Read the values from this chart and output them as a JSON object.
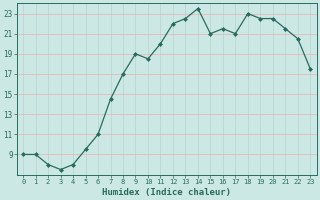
{
  "x": [
    0,
    1,
    2,
    3,
    4,
    5,
    6,
    7,
    8,
    9,
    10,
    11,
    12,
    13,
    14,
    15,
    16,
    17,
    18,
    19,
    20,
    21,
    22,
    23
  ],
  "y": [
    9,
    9,
    8,
    7.5,
    8,
    9.5,
    11,
    14.5,
    17,
    19,
    18.5,
    20,
    22,
    22.5,
    23.5,
    21,
    21.5,
    21,
    23,
    22.5,
    22.5,
    21.5,
    20.5,
    17.5
  ],
  "xlabel": "Humidex (Indice chaleur)",
  "bg_color": "#cce8e4",
  "line_color": "#2a6b5e",
  "grid_pink": "#e8b8b8",
  "grid_teal": "#b8d8d4",
  "ylim": [
    7,
    24
  ],
  "xlim": [
    -0.5,
    23.5
  ],
  "yticks": [
    9,
    11,
    13,
    15,
    17,
    19,
    21,
    23
  ],
  "xticks": [
    0,
    1,
    2,
    3,
    4,
    5,
    6,
    7,
    8,
    9,
    10,
    11,
    12,
    13,
    14,
    15,
    16,
    17,
    18,
    19,
    20,
    21,
    22,
    23
  ]
}
